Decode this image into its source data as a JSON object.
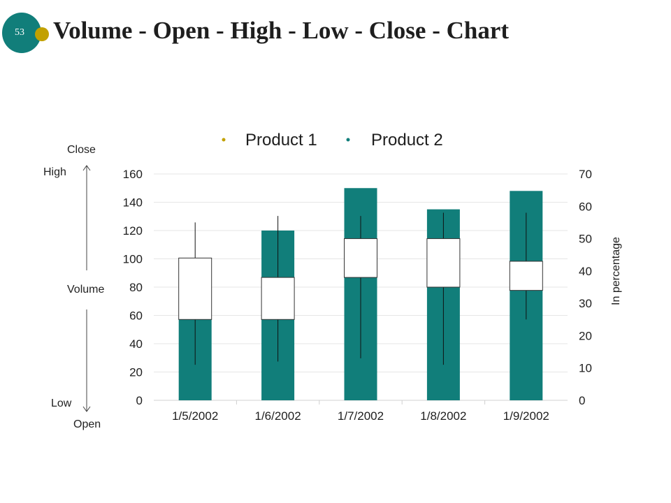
{
  "slide": {
    "number": "53",
    "title": "Volume - Open - High - Low - Close - Chart"
  },
  "colors": {
    "teal": "#117e7a",
    "gold": "#c2a100",
    "text": "#1e1e1e",
    "grid": "#e6e6e6",
    "box_fill": "#ffffff"
  },
  "ohlc_labels": {
    "close": "Close",
    "high": "High",
    "volume": "Volume",
    "low": "Low",
    "open": "Open"
  },
  "chart_data": {
    "type": "bar",
    "subtype": "volume-open-high-low-close",
    "title": "",
    "categories": [
      "1/5/2002",
      "1/6/2002",
      "1/7/2002",
      "1/8/2002",
      "1/9/2002"
    ],
    "legend": [
      "Product 1",
      "Product 2"
    ],
    "legend_position": "top",
    "volume": {
      "name": "Volume",
      "axis": "left",
      "values": [
        100,
        120,
        150,
        135,
        148
      ],
      "ylim": [
        0,
        160
      ],
      "ticks": [
        0,
        20,
        40,
        60,
        80,
        100,
        120,
        140,
        160
      ]
    },
    "price": {
      "axis": "right",
      "ylabel": "In percentage",
      "ylim": [
        0,
        70
      ],
      "ticks": [
        0,
        10,
        20,
        30,
        40,
        50,
        60,
        70
      ],
      "open": [
        25,
        25,
        38,
        35,
        34
      ],
      "high": [
        55,
        57,
        57,
        58,
        58
      ],
      "low": [
        11,
        12,
        13,
        11,
        25
      ],
      "close": [
        44,
        38,
        50,
        50,
        43
      ]
    },
    "grid": true
  }
}
